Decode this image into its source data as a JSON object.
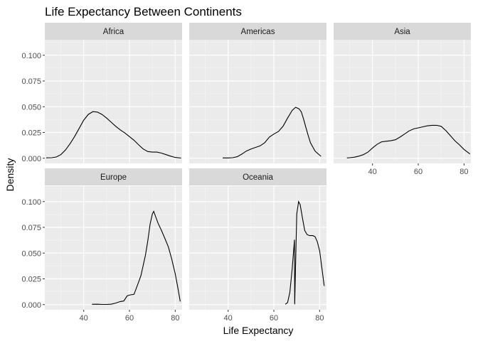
{
  "chart_data": {
    "type": "area",
    "title": "Life Expectancy Between Continents",
    "xlabel": "Life Expectancy",
    "ylabel": "Density",
    "xlim": [
      23,
      83
    ],
    "ylim": [
      -0.005,
      0.115
    ],
    "x_ticks": [
      40,
      60,
      80
    ],
    "y_ticks": [
      0.0,
      0.025,
      0.05,
      0.075,
      0.1
    ],
    "y_tick_labels": [
      "0.000",
      "0.025",
      "0.050",
      "0.075",
      "0.100"
    ],
    "grid": true,
    "facets": [
      {
        "name": "Africa",
        "points": [
          [
            23.6,
            0.0004
          ],
          [
            26,
            0.0005
          ],
          [
            28,
            0.0012
          ],
          [
            30,
            0.0035
          ],
          [
            32,
            0.008
          ],
          [
            34,
            0.014
          ],
          [
            36,
            0.021
          ],
          [
            38,
            0.029
          ],
          [
            40,
            0.037
          ],
          [
            42,
            0.0425
          ],
          [
            44,
            0.0453
          ],
          [
            46,
            0.0448
          ],
          [
            48,
            0.0425
          ],
          [
            50,
            0.039
          ],
          [
            52,
            0.035
          ],
          [
            54,
            0.031
          ],
          [
            56,
            0.0275
          ],
          [
            58,
            0.0245
          ],
          [
            60,
            0.021
          ],
          [
            62,
            0.0175
          ],
          [
            64,
            0.013
          ],
          [
            66,
            0.009
          ],
          [
            68,
            0.0065
          ],
          [
            70,
            0.006
          ],
          [
            72,
            0.006
          ],
          [
            74,
            0.005
          ],
          [
            76,
            0.0035
          ],
          [
            78,
            0.002
          ],
          [
            80,
            0.0008
          ],
          [
            82.6,
            0.0002
          ]
        ]
      },
      {
        "name": "Americas",
        "points": [
          [
            37.6,
            0.0003
          ],
          [
            40,
            0.0003
          ],
          [
            42,
            0.0005
          ],
          [
            44,
            0.0015
          ],
          [
            46,
            0.004
          ],
          [
            48,
            0.007
          ],
          [
            50,
            0.009
          ],
          [
            52,
            0.0105
          ],
          [
            54,
            0.012
          ],
          [
            56,
            0.015
          ],
          [
            58,
            0.0205
          ],
          [
            60,
            0.0235
          ],
          [
            62,
            0.026
          ],
          [
            64,
            0.031
          ],
          [
            66,
            0.039
          ],
          [
            68,
            0.0465
          ],
          [
            69.5,
            0.0495
          ],
          [
            71,
            0.048
          ],
          [
            72,
            0.045
          ],
          [
            73,
            0.038
          ],
          [
            74,
            0.03
          ],
          [
            75,
            0.022
          ],
          [
            76,
            0.015
          ],
          [
            78,
            0.007
          ],
          [
            80.6,
            0.0018
          ]
        ]
      },
      {
        "name": "Asia",
        "points": [
          [
            28.8,
            0.0003
          ],
          [
            30,
            0.0005
          ],
          [
            32,
            0.001
          ],
          [
            34,
            0.002
          ],
          [
            36,
            0.0035
          ],
          [
            38,
            0.006
          ],
          [
            40,
            0.01
          ],
          [
            42,
            0.0135
          ],
          [
            44,
            0.016
          ],
          [
            46,
            0.0165
          ],
          [
            48,
            0.017
          ],
          [
            50,
            0.018
          ],
          [
            52,
            0.0205
          ],
          [
            54,
            0.0235
          ],
          [
            56,
            0.0265
          ],
          [
            58,
            0.0285
          ],
          [
            60,
            0.0295
          ],
          [
            62,
            0.0305
          ],
          [
            64,
            0.0315
          ],
          [
            66,
            0.032
          ],
          [
            68,
            0.032
          ],
          [
            70,
            0.031
          ],
          [
            72,
            0.027
          ],
          [
            74,
            0.022
          ],
          [
            76,
            0.017
          ],
          [
            78,
            0.013
          ],
          [
            80,
            0.0085
          ],
          [
            82.6,
            0.0042
          ]
        ]
      },
      {
        "name": "Europe",
        "points": [
          [
            43.6,
            0.0003
          ],
          [
            46,
            0.0004
          ],
          [
            48,
            0.0002
          ],
          [
            50,
            0.0002
          ],
          [
            52,
            0.0004
          ],
          [
            54,
            0.0015
          ],
          [
            56,
            0.003
          ],
          [
            57.5,
            0.0035
          ],
          [
            59,
            0.0085
          ],
          [
            60.5,
            0.0095
          ],
          [
            62,
            0.01
          ],
          [
            63,
            0.016
          ],
          [
            64,
            0.022
          ],
          [
            65,
            0.028
          ],
          [
            66,
            0.038
          ],
          [
            67,
            0.048
          ],
          [
            68,
            0.062
          ],
          [
            69,
            0.078
          ],
          [
            70,
            0.088
          ],
          [
            70.6,
            0.0905
          ],
          [
            71.5,
            0.085
          ],
          [
            72.5,
            0.079
          ],
          [
            74,
            0.072
          ],
          [
            75.5,
            0.064
          ],
          [
            77,
            0.056
          ],
          [
            78.5,
            0.044
          ],
          [
            80,
            0.03
          ],
          [
            81,
            0.018
          ],
          [
            82.2,
            0.003
          ]
        ]
      },
      {
        "name": "Oceania",
        "points": [
          [
            69.1,
            0.0003
          ],
          [
            65,
            0.0003
          ],
          [
            66,
            0.002
          ],
          [
            67,
            0.012
          ],
          [
            68,
            0.035
          ],
          [
            69,
            0.063
          ],
          [
            70,
            0.088
          ],
          [
            70.8,
            0.1
          ],
          [
            71.5,
            0.097
          ],
          [
            72.5,
            0.084
          ],
          [
            73.5,
            0.072
          ],
          [
            74.5,
            0.068
          ],
          [
            75.5,
            0.067
          ],
          [
            77,
            0.067
          ],
          [
            78,
            0.066
          ],
          [
            79,
            0.061
          ],
          [
            80,
            0.052
          ],
          [
            81,
            0.035
          ],
          [
            82,
            0.018
          ]
        ]
      }
    ]
  }
}
